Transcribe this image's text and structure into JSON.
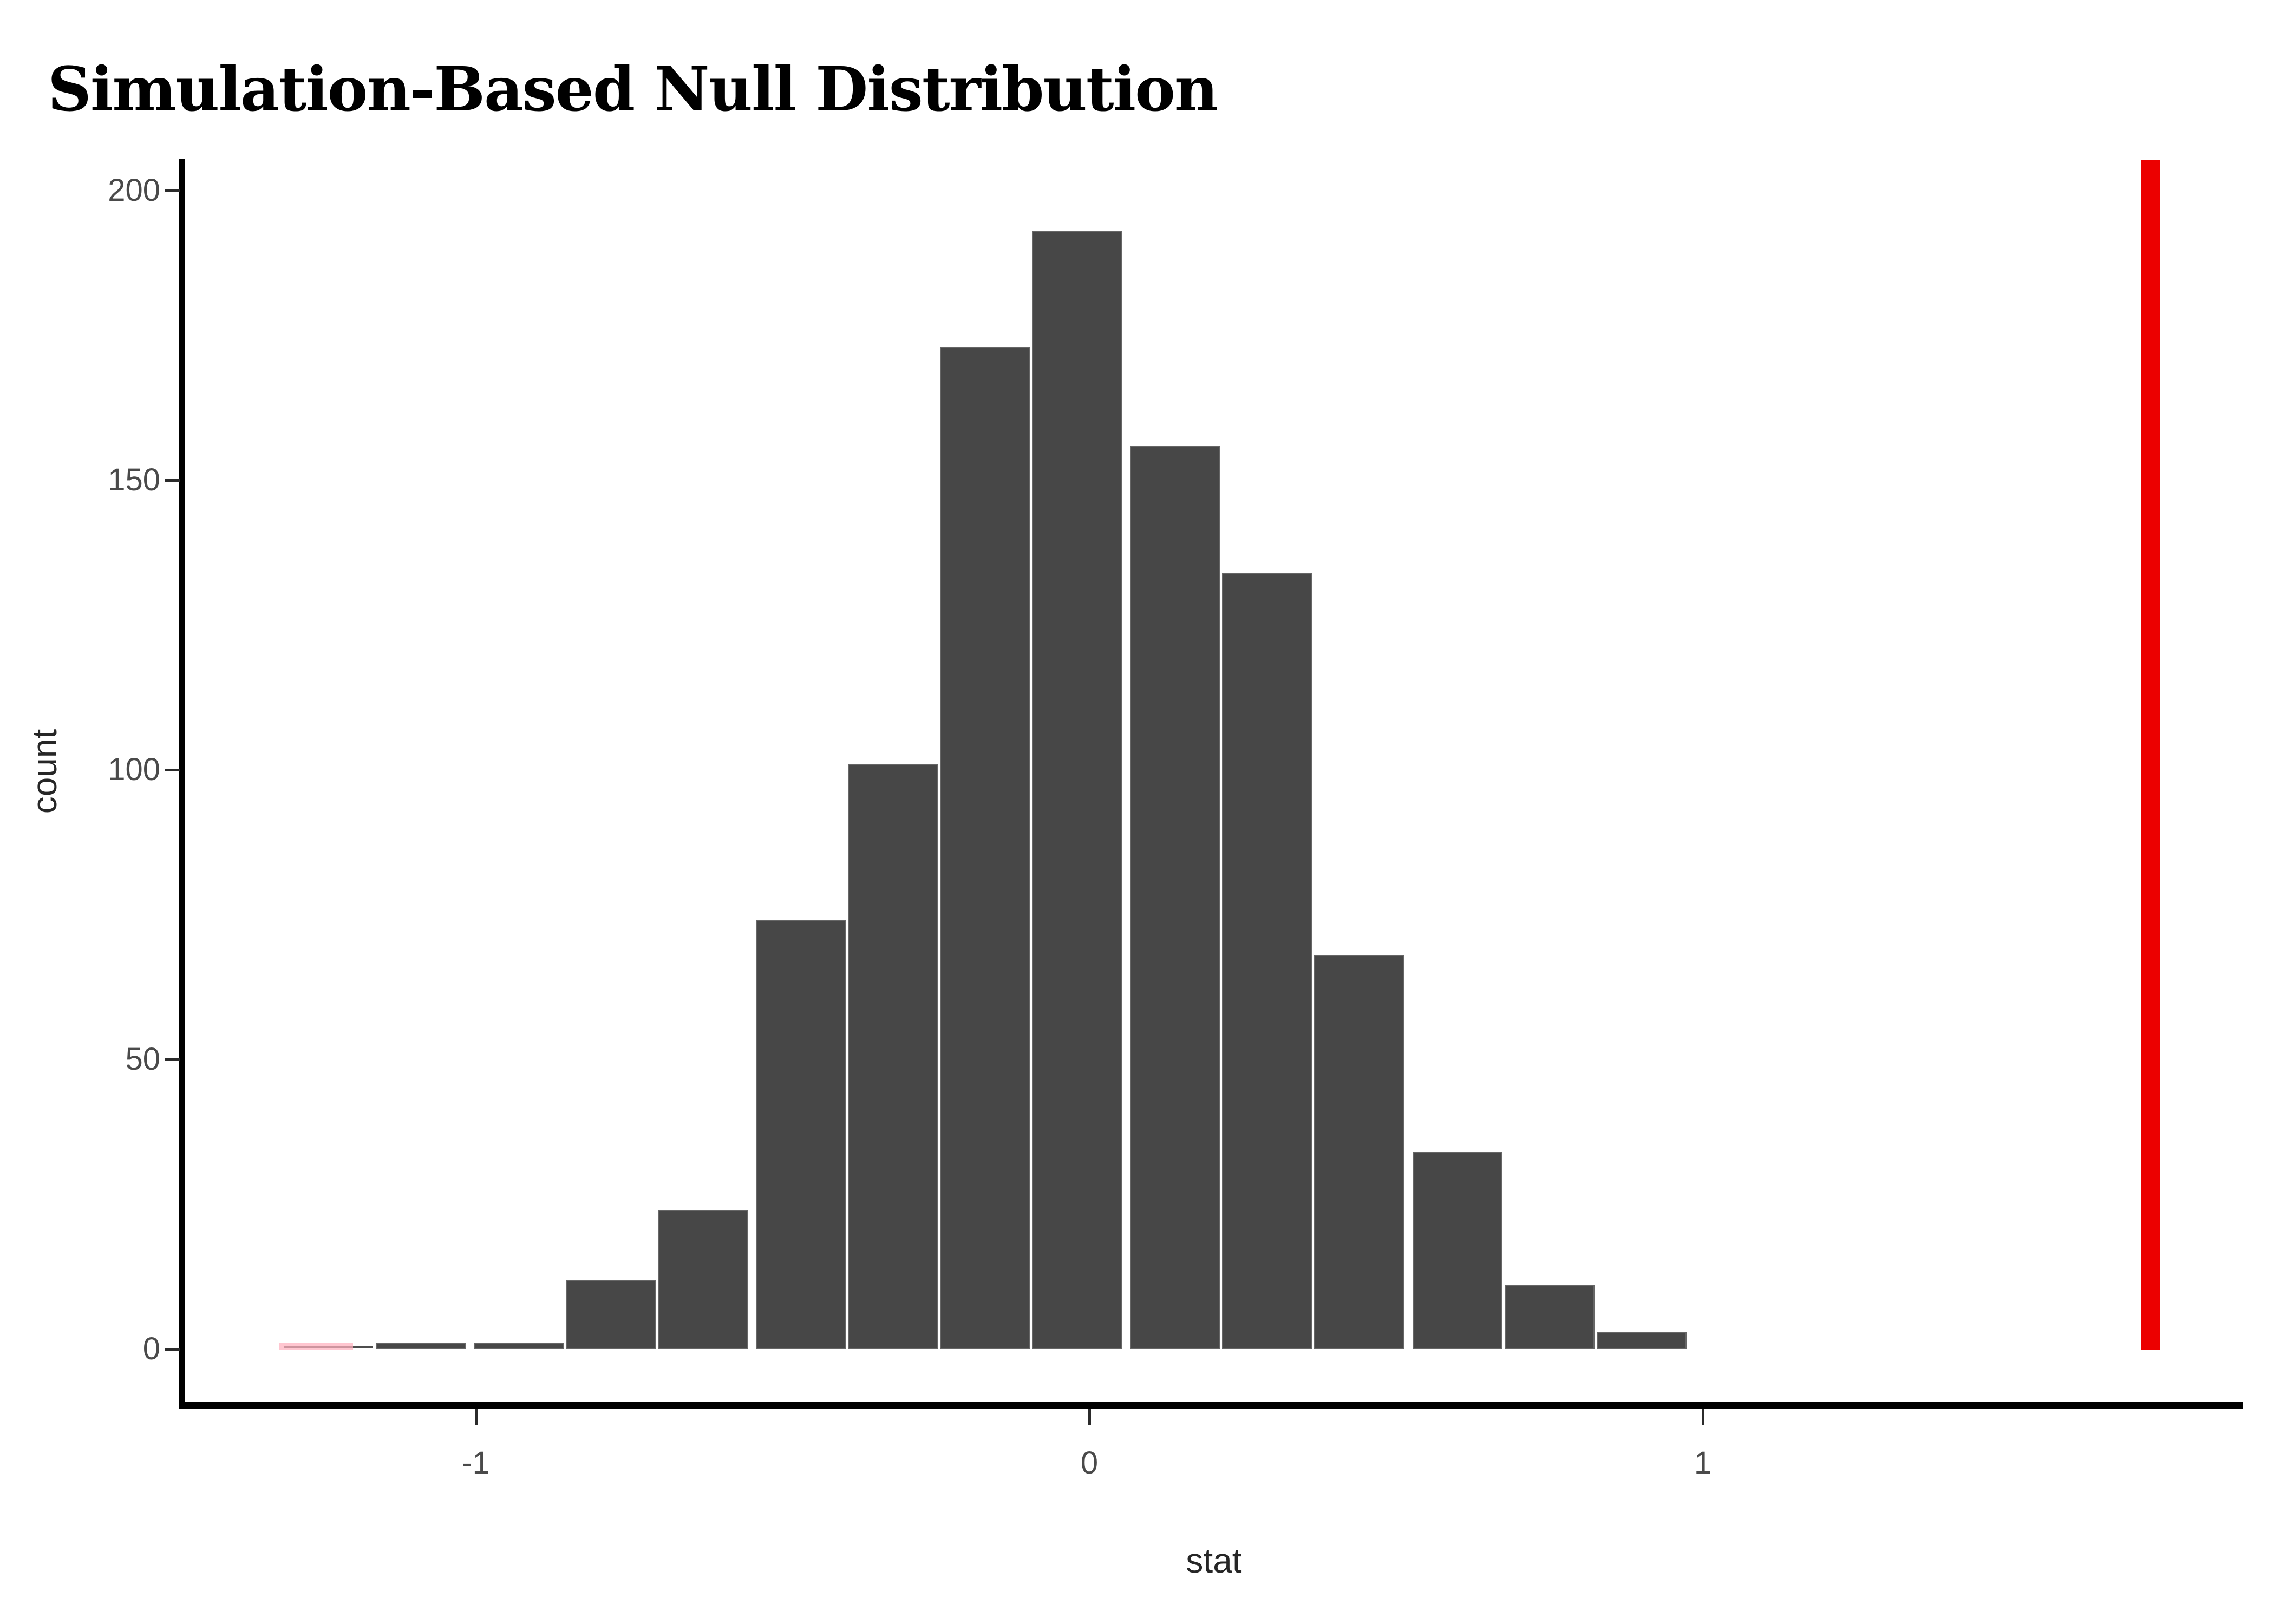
{
  "title": "Simulation-Based Null Distribution",
  "chart_data": {
    "type": "bar",
    "subtype": "histogram",
    "title": "Simulation-Based Null Distribution",
    "xlabel": "stat",
    "ylabel": "count",
    "x_ticks": [
      -1,
      0,
      1
    ],
    "y_ticks": [
      0,
      50,
      100,
      150,
      200
    ],
    "xlim": [
      -1.48,
      1.88
    ],
    "ylim": [
      0,
      205
    ],
    "grid": "off",
    "legend": "none",
    "bin_width": 0.153,
    "bins": [
      {
        "center": -1.24,
        "count": 1,
        "shaded": true
      },
      {
        "center": -1.09,
        "count": 1
      },
      {
        "center": -0.93,
        "count": 1
      },
      {
        "center": -0.78,
        "count": 12
      },
      {
        "center": -0.63,
        "count": 24
      },
      {
        "center": -0.47,
        "count": 74
      },
      {
        "center": -0.32,
        "count": 101
      },
      {
        "center": -0.17,
        "count": 173
      },
      {
        "center": -0.02,
        "count": 193
      },
      {
        "center": 0.14,
        "count": 156
      },
      {
        "center": 0.29,
        "count": 134
      },
      {
        "center": 0.44,
        "count": 68
      },
      {
        "center": 0.6,
        "count": 34
      },
      {
        "center": 0.75,
        "count": 11
      },
      {
        "center": 0.9,
        "count": 3
      }
    ],
    "observed_stat_line": {
      "x": 1.73,
      "color": "#ec0000"
    },
    "left_tail_shading": {
      "from": -1.32,
      "to": -1.2,
      "fill": "#ffb0be"
    },
    "bar_fill": "#474747",
    "bar_border": "#666666"
  }
}
